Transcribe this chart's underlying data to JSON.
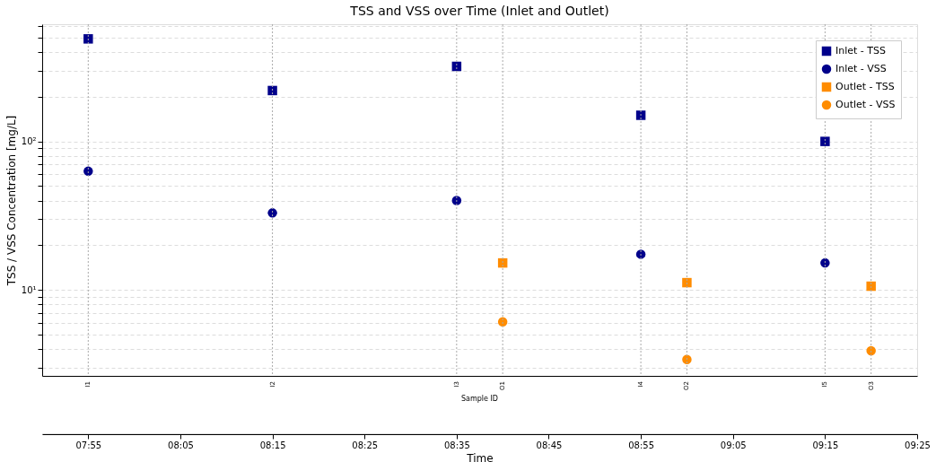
{
  "chart_data": {
    "type": "scatter",
    "title": "TSS and VSS over Time (Inlet and Outlet)",
    "ylabel": "TSS / VSS Concentration [mg/L]",
    "xlabel": "Time",
    "log": "y",
    "grid": "y",
    "legend": "top right",
    "annotations": [
      "Sample ID"
    ],
    "ref_lines": [
      {
        "axis": "x",
        "value": 7.916667,
        "label": "I1",
        "color": "#aaaaaa",
        "line_style": "dotted"
      },
      {
        "axis": "x",
        "value": 8.25,
        "label": "I2",
        "color": "#aaaaaa",
        "line_style": "dotted"
      },
      {
        "axis": "x",
        "value": 8.583333,
        "label": "I3",
        "color": "#aaaaaa",
        "line_style": "dotted"
      },
      {
        "axis": "x",
        "value": 8.666667,
        "label": "O1",
        "color": "#aaaaaa",
        "line_style": "dotted"
      },
      {
        "axis": "x",
        "value": 8.916667,
        "label": "I4",
        "color": "#aaaaaa",
        "line_style": "dotted"
      },
      {
        "axis": "x",
        "value": 9.0,
        "label": "O2",
        "color": "#aaaaaa",
        "line_style": "dotted"
      },
      {
        "axis": "x",
        "value": 9.25,
        "label": "I5",
        "color": "#aaaaaa",
        "line_style": "dotted"
      },
      {
        "axis": "x",
        "value": 9.333333,
        "label": "O3",
        "color": "#aaaaaa",
        "line_style": "dotted"
      }
    ],
    "xlim": [
      7.833333,
      9.416667
    ],
    "xticks": [
      {
        "value": 7.916667,
        "label": "07:55"
      },
      {
        "value": 8.083333,
        "label": "08:05"
      },
      {
        "value": 8.25,
        "label": "08:15"
      },
      {
        "value": 8.416667,
        "label": "08:25"
      },
      {
        "value": 8.583333,
        "label": "08:35"
      },
      {
        "value": 8.75,
        "label": "08:45"
      },
      {
        "value": 8.916667,
        "label": "08:55"
      },
      {
        "value": 9.083333,
        "label": "09:05"
      },
      {
        "value": 9.25,
        "label": "09:15"
      },
      {
        "value": 9.416667,
        "label": "09:25"
      }
    ],
    "ylim": [
      2.64,
      615
    ],
    "yticks": [
      {
        "value": 3,
        "label": null
      },
      {
        "value": 4,
        "label": null
      },
      {
        "value": 5,
        "label": null
      },
      {
        "value": 6,
        "label": null
      },
      {
        "value": 7,
        "label": null
      },
      {
        "value": 8,
        "label": null
      },
      {
        "value": 9,
        "label": null
      },
      {
        "value": 10,
        "label": "10¹"
      },
      {
        "value": 20,
        "label": null
      },
      {
        "value": 30,
        "label": null
      },
      {
        "value": 40,
        "label": null
      },
      {
        "value": 50,
        "label": null
      },
      {
        "value": 60,
        "label": null
      },
      {
        "value": 70,
        "label": null
      },
      {
        "value": 80,
        "label": null
      },
      {
        "value": 90,
        "label": null
      },
      {
        "value": 100,
        "label": "10²"
      },
      {
        "value": 200,
        "label": null
      },
      {
        "value": 300,
        "label": null
      },
      {
        "value": 400,
        "label": null
      },
      {
        "value": 500,
        "label": null
      },
      {
        "value": 600,
        "label": null
      }
    ],
    "series": [
      {
        "name": "Inlet - TSS",
        "color": "#00008b",
        "marker": "square",
        "x": [
          7.916667,
          8.25,
          8.583333,
          8.916667,
          9.25
        ],
        "values": [
          490,
          220,
          320,
          150,
          100
        ]
      },
      {
        "name": "Inlet - VSS",
        "color": "#00008b",
        "marker": "circle",
        "x": [
          7.916667,
          8.25,
          8.583333,
          8.916667,
          9.25
        ],
        "values": [
          63,
          33,
          40,
          17.4,
          15.2
        ]
      },
      {
        "name": "Outlet - TSS",
        "color": "#ff8c00",
        "marker": "square",
        "x": [
          8.666667,
          9.0,
          9.333333
        ],
        "values": [
          15.2,
          11.2,
          10.6
        ]
      },
      {
        "name": "Outlet - VSS",
        "color": "#ff8c00",
        "marker": "circle",
        "x": [
          8.666667,
          9.0,
          9.333333
        ],
        "values": [
          6.1,
          3.4,
          3.9
        ]
      }
    ]
  }
}
